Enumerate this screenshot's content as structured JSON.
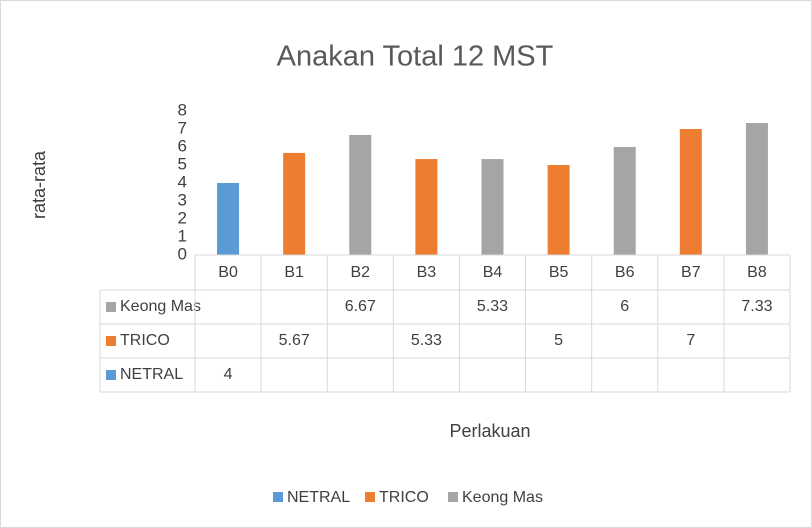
{
  "chart_data": {
    "type": "bar",
    "title": "Anakan Total 12 MST",
    "y_label": "rata-rata",
    "x_label": "Perlakuan",
    "categories": [
      "B0",
      "B1",
      "B2",
      "B3",
      "B4",
      "B5",
      "B6",
      "B7",
      "B8"
    ],
    "series": [
      {
        "name": "NETRAL",
        "color": "#5b9bd5",
        "values": [
          4,
          null,
          null,
          null,
          null,
          null,
          null,
          null,
          null
        ]
      },
      {
        "name": "TRICO",
        "color": "#ed7d31",
        "values": [
          null,
          5.67,
          null,
          5.33,
          null,
          5,
          null,
          7,
          null
        ]
      },
      {
        "name": "Keong Mas",
        "color": "#a5a5a5",
        "values": [
          null,
          null,
          6.67,
          null,
          5.33,
          null,
          6,
          null,
          7.33
        ]
      }
    ],
    "ylim": [
      0,
      8
    ],
    "yticks": [
      0,
      1,
      2,
      3,
      4,
      5,
      6,
      7,
      8
    ],
    "data_table": true,
    "legend": "bottom"
  }
}
